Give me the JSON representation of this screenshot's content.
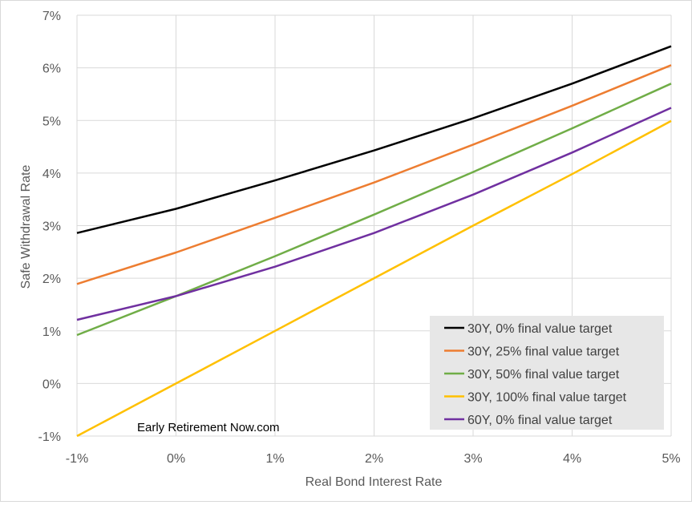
{
  "chart_data": {
    "type": "line",
    "title": "",
    "xlabel": "Real Bond Interest Rate",
    "ylabel": "Safe Withdrawal Rate",
    "x": [
      -1,
      0,
      1,
      2,
      3,
      4,
      5
    ],
    "x_tick_labels": [
      "-1%",
      "0%",
      "1%",
      "2%",
      "3%",
      "4%",
      "5%"
    ],
    "y_tick_values": [
      -1,
      0,
      1,
      2,
      3,
      4,
      5,
      6,
      7
    ],
    "y_tick_labels": [
      "-1%",
      "0%",
      "1%",
      "2%",
      "3%",
      "4%",
      "5%",
      "6%",
      "7%"
    ],
    "xlim": [
      -1,
      5
    ],
    "ylim": [
      -1,
      7
    ],
    "grid": true,
    "legend_position": "bottom-right",
    "annotation": "Early Retirement Now.com",
    "series": [
      {
        "name": "30Y, 0% final value target",
        "color": "#000000",
        "values": [
          2.86,
          3.32,
          3.86,
          4.43,
          5.04,
          5.7,
          6.41
        ]
      },
      {
        "name": "30Y, 25% final value target",
        "color": "#ED7D31",
        "values": [
          1.89,
          2.49,
          3.15,
          3.82,
          4.54,
          5.28,
          6.05
        ]
      },
      {
        "name": "30Y, 50% final value target",
        "color": "#70AD47",
        "values": [
          0.92,
          1.66,
          2.42,
          3.21,
          4.02,
          4.85,
          5.7
        ]
      },
      {
        "name": "30Y, 100% final value target",
        "color": "#FFC000",
        "values": [
          -1.0,
          0.0,
          1.0,
          2.0,
          3.0,
          3.98,
          4.99
        ]
      },
      {
        "name": "60Y, 0% final value target",
        "color": "#7030A0",
        "values": [
          1.21,
          1.66,
          2.22,
          2.86,
          3.59,
          4.39,
          5.24
        ]
      }
    ]
  }
}
